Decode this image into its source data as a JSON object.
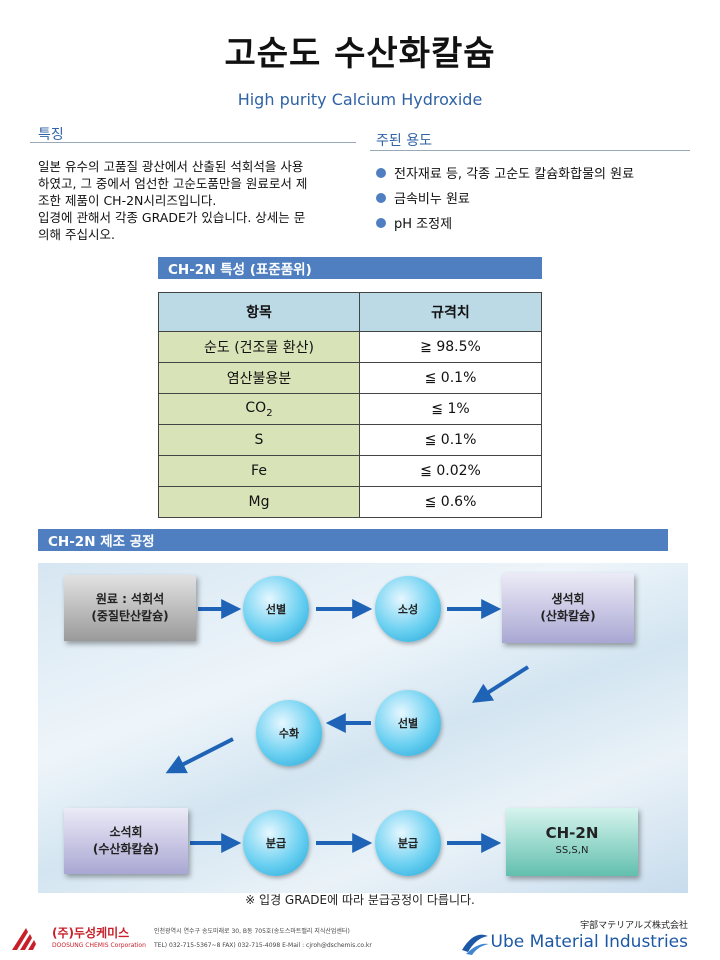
{
  "title": "고순도 수산화칼슘",
  "subtitle": "High purity Calcium Hydroxide",
  "features": {
    "heading": "특징",
    "lines": [
      "일본 유수의 고품질 광산에서 산출된 석회석을 사용",
      "하였고, 그 중에서 엄선한 고순도품만을 원료로서 제",
      "조한 제품이 CH-2N시리즈입니다.",
      "입경에 관해서 각종 GRADE가 있습니다. 상세는 문",
      "의해 주십시오."
    ]
  },
  "uses": {
    "heading": "주된 용도",
    "items": [
      "전자재료 등, 각종 고순도 칼슘화합물의 원료",
      "금속비누 원료",
      "pH 조정제"
    ]
  },
  "spec": {
    "heading": "CH-2N 특성 (표준품위)",
    "col_item": "항목",
    "col_value": "규격치",
    "rows": [
      {
        "item": "순도 (건조물 환산)",
        "value": "≧ 98.5%"
      },
      {
        "item": "염산불용분",
        "value": "≦ 0.1%"
      },
      {
        "item": "CO",
        "item_sub": "2",
        "value": "≦ 1%"
      },
      {
        "item": "S",
        "value": "≦ 0.1%"
      },
      {
        "item": "Fe",
        "value": "≦ 0.02%"
      },
      {
        "item": "Mg",
        "value": "≦ 0.6%"
      }
    ]
  },
  "process": {
    "heading": "CH-2N 제조 공정",
    "raw_material": {
      "line1": "원료 : 석회석",
      "line2": "(중질탄산칼슘)"
    },
    "step_select1": "선별",
    "step_calcine": "소성",
    "quicklime": {
      "line1": "생석회",
      "line2": "(산화칼슘)"
    },
    "step_select2": "선별",
    "step_hydrate": "수화",
    "slaked_lime": {
      "line1": "소석회",
      "line2": "(수산화칼슘)"
    },
    "step_classify1": "분급",
    "step_classify2": "분급",
    "product": {
      "name": "CH-2N",
      "grades": "SS,S,N"
    },
    "note": "※ 입경 GRADE에 따라 분급공정이 다릅니다."
  },
  "footer": {
    "company_kr": "(주)두성케미스",
    "company_en": "DOOSUNG CHEMIS Corporation",
    "address": "인천광역시 연수구 송도미래로 30, B동 705호(송도스마트밸리 지식산업센터)",
    "contact": "TEL) 032-715-5367~8  FAX) 032-715-4098  E-Mail : cjroh@dschemis.co.kr",
    "partner_jp": "宇部マテリアルズ株式会社",
    "partner_en": "Ube Material Industries"
  },
  "colors": {
    "accent": "#4f7fc0",
    "title_blue": "#2f62a6",
    "arrow": "#1f63b6",
    "brand_red": "#c8202a"
  }
}
